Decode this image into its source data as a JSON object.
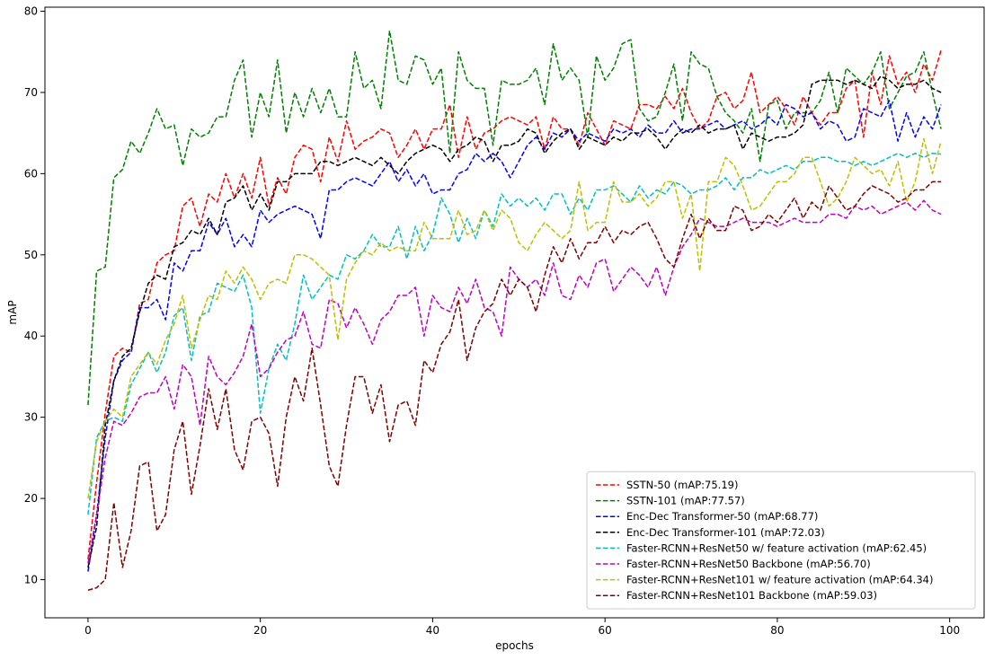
{
  "chart_data": {
    "type": "line",
    "xlabel": "epochs",
    "ylabel": "mAP",
    "xlim": [
      -5,
      104
    ],
    "ylim": [
      5.3,
      80.5
    ],
    "xticks": [
      0,
      20,
      40,
      60,
      80,
      100
    ],
    "yticks": [
      10,
      20,
      30,
      40,
      50,
      60,
      70,
      80
    ],
    "grid": false,
    "legend_position": "bottom-right",
    "line_style": "dashed",
    "series": [
      {
        "name": "SSTN-50 (mAP:75.19)",
        "color": "#ff0000",
        "values": [
          12.5,
          22.0,
          30.5,
          37.5,
          38.5,
          38.0,
          44.0,
          44.5,
          49.0,
          50.0,
          50.5,
          56.0,
          57.0,
          53.5,
          57.5,
          56.5,
          60.0,
          57.0,
          60.0,
          57.0,
          62.0,
          56.0,
          59.5,
          57.5,
          62.0,
          63.5,
          63.0,
          59.0,
          64.5,
          61.5,
          66.5,
          63.0,
          64.0,
          64.5,
          65.5,
          65.0,
          62.0,
          63.5,
          65.5,
          63.0,
          65.5,
          65.5,
          68.5,
          62.0,
          67.0,
          63.0,
          65.0,
          65.5,
          66.5,
          67.0,
          66.5,
          66.0,
          67.0,
          63.0,
          67.0,
          65.5,
          65.5,
          63.5,
          67.5,
          65.5,
          63.5,
          66.5,
          66.0,
          65.5,
          68.5,
          68.5,
          68.0,
          69.5,
          68.0,
          70.5,
          67.5,
          65.5,
          66.5,
          69.5,
          70.0,
          68.0,
          69.0,
          72.5,
          67.5,
          68.5,
          69.5,
          68.0,
          66.0,
          69.5,
          67.5,
          66.0,
          67.5,
          67.5,
          70.5,
          71.5,
          64.5,
          72.5,
          68.5,
          74.5,
          71.0,
          72.5,
          70.0,
          73.5,
          71.5,
          75.2
        ]
      },
      {
        "name": "SSTN-101 (mAP:77.57)",
        "color": "#007f00",
        "values": [
          31.5,
          48.0,
          48.5,
          59.5,
          60.5,
          64.0,
          62.5,
          65.0,
          68.0,
          65.5,
          66.0,
          61.0,
          65.5,
          64.5,
          65.0,
          67.0,
          67.0,
          71.5,
          74.0,
          64.5,
          70.0,
          67.0,
          74.0,
          65.0,
          70.0,
          67.0,
          70.5,
          67.5,
          70.5,
          67.0,
          67.0,
          75.0,
          70.5,
          71.5,
          68.0,
          77.6,
          71.5,
          71.0,
          74.5,
          74.0,
          71.0,
          73.0,
          62.5,
          75.0,
          71.5,
          70.5,
          70.5,
          63.5,
          71.5,
          71.0,
          71.0,
          71.5,
          73.0,
          68.5,
          76.0,
          71.5,
          73.0,
          71.5,
          64.5,
          74.5,
          71.5,
          73.0,
          76.0,
          76.5,
          68.0,
          66.5,
          67.0,
          70.0,
          73.5,
          66.5,
          75.0,
          73.5,
          73.0,
          69.5,
          67.5,
          66.5,
          65.0,
          68.0,
          61.5,
          68.5,
          69.0,
          65.5,
          67.5,
          67.5,
          67.5,
          69.0,
          72.5,
          67.5,
          73.0,
          72.0,
          71.0,
          72.5,
          75.0,
          68.0,
          70.0,
          72.0,
          72.5,
          75.0,
          70.0,
          65.5
        ]
      },
      {
        "name": "Enc-Dec Transformer-50 (mAP:68.77)",
        "color": "#0000ff",
        "values": [
          11.0,
          18.0,
          27.5,
          34.5,
          37.0,
          38.0,
          43.5,
          43.5,
          44.5,
          42.0,
          49.0,
          48.0,
          50.5,
          50.5,
          54.0,
          52.5,
          54.5,
          51.0,
          52.5,
          51.0,
          55.5,
          54.0,
          55.0,
          55.5,
          56.0,
          55.5,
          55.0,
          52.0,
          58.0,
          58.0,
          59.0,
          59.5,
          59.0,
          58.5,
          60.0,
          61.5,
          59.0,
          60.5,
          58.5,
          60.0,
          57.5,
          58.0,
          58.0,
          60.0,
          60.5,
          62.5,
          61.5,
          62.5,
          61.5,
          59.5,
          61.5,
          63.5,
          64.5,
          63.0,
          65.0,
          64.5,
          65.5,
          64.0,
          65.0,
          64.5,
          64.0,
          65.5,
          65.0,
          65.5,
          64.5,
          66.0,
          65.0,
          65.0,
          66.5,
          65.0,
          65.5,
          65.5,
          66.0,
          66.5,
          65.5,
          66.0,
          66.5,
          65.5,
          66.0,
          67.0,
          66.0,
          68.5,
          68.0,
          67.0,
          67.5,
          65.5,
          66.5,
          66.0,
          64.0,
          64.5,
          68.0,
          67.5,
          67.0,
          69.0,
          64.0,
          67.5,
          64.5,
          67.0,
          65.5,
          68.5
        ]
      },
      {
        "name": "Enc-Dec Transformer-101 (mAP:72.03)",
        "color": "#000000",
        "values": [
          11.5,
          16.5,
          29.0,
          34.5,
          37.5,
          38.5,
          43.0,
          46.5,
          47.5,
          47.0,
          51.0,
          51.5,
          53.0,
          52.5,
          54.5,
          52.5,
          56.5,
          57.0,
          58.5,
          55.5,
          57.5,
          55.5,
          59.0,
          59.0,
          60.0,
          60.0,
          60.0,
          61.5,
          61.5,
          61.0,
          61.5,
          62.0,
          61.5,
          61.0,
          62.0,
          61.0,
          60.0,
          61.5,
          62.5,
          63.0,
          63.5,
          63.0,
          61.5,
          63.0,
          63.5,
          64.5,
          64.0,
          61.5,
          63.5,
          63.5,
          64.0,
          65.5,
          65.0,
          62.5,
          64.0,
          65.0,
          65.5,
          63.0,
          64.5,
          64.0,
          63.5,
          64.5,
          64.0,
          65.0,
          65.0,
          65.5,
          64.5,
          63.0,
          64.5,
          65.5,
          65.0,
          66.0,
          65.0,
          65.5,
          65.5,
          66.0,
          63.0,
          65.0,
          64.5,
          64.0,
          64.5,
          64.5,
          65.0,
          66.0,
          71.0,
          71.5,
          71.5,
          71.5,
          71.0,
          71.5,
          71.0,
          70.5,
          72.0,
          71.5,
          70.5,
          71.0,
          71.0,
          71.5,
          70.5,
          70.0
        ]
      },
      {
        "name": "Faster-RCNN+ResNet50 w/ feature activation (mAP:62.45)",
        "color": "#00bfbf",
        "values": [
          18.0,
          27.5,
          29.5,
          30.0,
          29.5,
          34.0,
          36.0,
          38.0,
          35.5,
          38.0,
          42.5,
          43.5,
          37.0,
          42.5,
          43.0,
          46.5,
          46.0,
          45.5,
          47.5,
          43.5,
          30.5,
          36.0,
          39.0,
          37.0,
          41.5,
          47.5,
          44.5,
          46.0,
          47.5,
          47.0,
          50.0,
          49.5,
          50.5,
          52.5,
          51.0,
          51.0,
          53.5,
          49.5,
          53.5,
          50.5,
          52.5,
          57.0,
          55.0,
          51.5,
          54.5,
          52.0,
          55.5,
          53.5,
          57.5,
          56.0,
          57.0,
          56.0,
          57.0,
          55.5,
          57.5,
          57.5,
          55.0,
          57.0,
          55.5,
          58.0,
          58.0,
          58.5,
          57.5,
          56.5,
          58.5,
          57.0,
          58.0,
          57.5,
          59.0,
          58.5,
          57.5,
          58.0,
          58.0,
          58.5,
          59.5,
          58.0,
          59.5,
          59.5,
          60.5,
          60.0,
          60.5,
          61.0,
          60.5,
          61.5,
          61.5,
          62.0,
          62.0,
          61.5,
          61.5,
          61.0,
          61.5,
          61.0,
          61.5,
          62.0,
          62.5,
          62.0,
          62.5,
          62.0,
          62.5,
          62.4
        ]
      },
      {
        "name": "Faster-RCNN+ResNet50 Backbone (mAP:56.70)",
        "color": "#bf00bf",
        "values": [
          12.0,
          18.0,
          25.0,
          29.5,
          29.0,
          30.5,
          32.5,
          33.0,
          33.0,
          35.0,
          31.0,
          36.5,
          35.0,
          29.0,
          37.5,
          35.0,
          34.0,
          35.5,
          37.5,
          41.5,
          35.0,
          36.0,
          38.0,
          39.5,
          40.0,
          43.0,
          39.0,
          38.5,
          44.5,
          44.0,
          41.0,
          43.5,
          41.5,
          39.0,
          42.0,
          43.0,
          45.0,
          45.0,
          46.0,
          40.0,
          45.0,
          43.5,
          43.0,
          46.0,
          44.0,
          47.0,
          43.5,
          43.0,
          40.0,
          48.5,
          47.0,
          46.0,
          47.0,
          45.0,
          49.0,
          45.0,
          44.5,
          47.5,
          46.0,
          49.0,
          49.5,
          45.5,
          47.0,
          48.5,
          47.5,
          46.0,
          48.5,
          45.0,
          48.5,
          51.0,
          52.5,
          54.5,
          54.0,
          53.5,
          53.5,
          54.0,
          54.5,
          54.0,
          54.0,
          54.0,
          53.5,
          54.0,
          54.5,
          54.0,
          54.0,
          54.0,
          55.0,
          55.0,
          54.5,
          56.0,
          55.5,
          56.0,
          55.0,
          55.5,
          56.0,
          56.5,
          55.5,
          56.7,
          55.5,
          55.0
        ]
      },
      {
        "name": "Faster-RCNN+ResNet101 w/ feature activation (mAP:64.34)",
        "color": "#bfbf00",
        "values": [
          20.0,
          27.0,
          29.5,
          31.0,
          30.0,
          35.0,
          36.5,
          38.0,
          36.5,
          39.5,
          41.5,
          45.0,
          38.5,
          42.0,
          45.0,
          44.5,
          48.0,
          46.5,
          48.5,
          47.0,
          44.5,
          46.5,
          47.0,
          46.5,
          50.0,
          50.0,
          49.5,
          48.5,
          47.5,
          39.5,
          47.0,
          49.0,
          50.5,
          50.0,
          51.5,
          50.5,
          51.0,
          50.5,
          50.5,
          54.0,
          52.0,
          52.0,
          52.0,
          55.5,
          52.5,
          53.0,
          55.5,
          53.0,
          55.5,
          54.5,
          51.5,
          50.5,
          52.5,
          54.0,
          53.0,
          52.0,
          53.0,
          59.0,
          53.0,
          54.0,
          54.0,
          59.0,
          56.5,
          56.5,
          57.5,
          56.0,
          57.0,
          59.0,
          59.0,
          54.5,
          57.5,
          48.0,
          59.0,
          59.0,
          62.0,
          61.0,
          58.5,
          55.5,
          56.0,
          57.5,
          59.0,
          59.0,
          60.0,
          62.0,
          62.0,
          59.0,
          56.0,
          57.0,
          59.0,
          62.0,
          61.0,
          60.0,
          60.5,
          58.5,
          61.5,
          56.5,
          59.0,
          64.3,
          60.0,
          64.0
        ]
      },
      {
        "name": "Faster-RCNN+ResNet101 Backbone (mAP:59.03)",
        "color": "#7f0000",
        "values": [
          8.7,
          9.0,
          10.0,
          19.5,
          11.5,
          16.0,
          24.0,
          24.5,
          16.0,
          18.0,
          26.0,
          29.5,
          20.5,
          26.5,
          33.5,
          28.5,
          33.5,
          26.0,
          23.5,
          29.5,
          30.0,
          28.0,
          21.5,
          30.0,
          35.0,
          32.0,
          38.5,
          31.5,
          24.0,
          21.5,
          29.0,
          35.0,
          35.0,
          30.5,
          34.0,
          27.0,
          31.5,
          32.0,
          29.0,
          37.0,
          35.5,
          39.0,
          40.5,
          44.5,
          37.0,
          41.0,
          43.0,
          44.0,
          47.0,
          45.0,
          47.0,
          46.0,
          43.0,
          47.5,
          51.0,
          49.0,
          52.0,
          49.5,
          51.5,
          51.5,
          53.5,
          51.5,
          53.0,
          52.5,
          53.5,
          54.0,
          52.0,
          49.5,
          48.5,
          52.0,
          55.0,
          52.0,
          54.5,
          53.0,
          53.0,
          56.0,
          55.5,
          53.0,
          53.5,
          55.0,
          54.0,
          55.5,
          57.0,
          54.5,
          56.5,
          55.5,
          58.5,
          57.0,
          55.5,
          56.0,
          57.5,
          58.5,
          58.0,
          57.5,
          56.5,
          57.0,
          58.0,
          58.0,
          59.0,
          59.0
        ]
      }
    ]
  }
}
